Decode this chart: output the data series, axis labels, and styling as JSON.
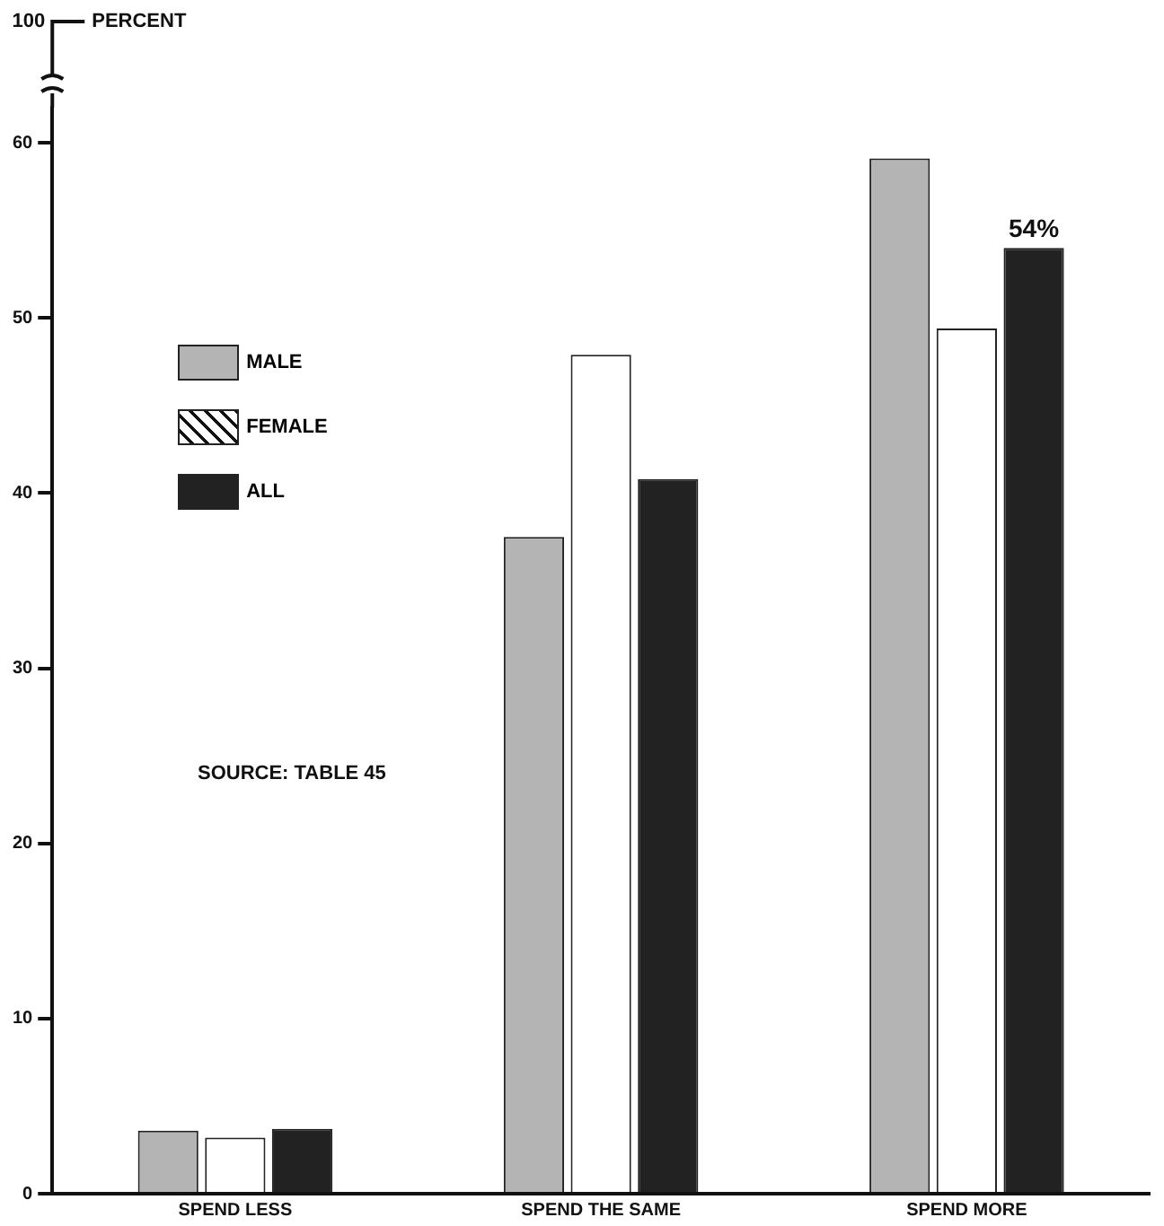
{
  "chart_data": {
    "type": "bar",
    "ylabel": "PERCENT",
    "categories": [
      "SPEND LESS",
      "SPEND THE SAME",
      "SPEND MORE"
    ],
    "series": [
      {
        "name": "MALE",
        "color": "#b4b4b4",
        "values": [
          3.6,
          37.5,
          59.1
        ]
      },
      {
        "name": "FEMALE",
        "color": "#ffffff",
        "values": [
          3.2,
          47.9,
          49.4
        ]
      },
      {
        "name": "ALL",
        "color": "#222222",
        "values": [
          3.7,
          40.8,
          54
        ],
        "value_labels": [
          null,
          null,
          "54%"
        ]
      }
    ],
    "ylim": [
      0,
      62
    ],
    "yticks": [
      0,
      10,
      20,
      30,
      40,
      50,
      60
    ],
    "grid": false,
    "legend": "top left",
    "annotations": [
      "100",
      "SOURCE: TABLE 45"
    ]
  }
}
